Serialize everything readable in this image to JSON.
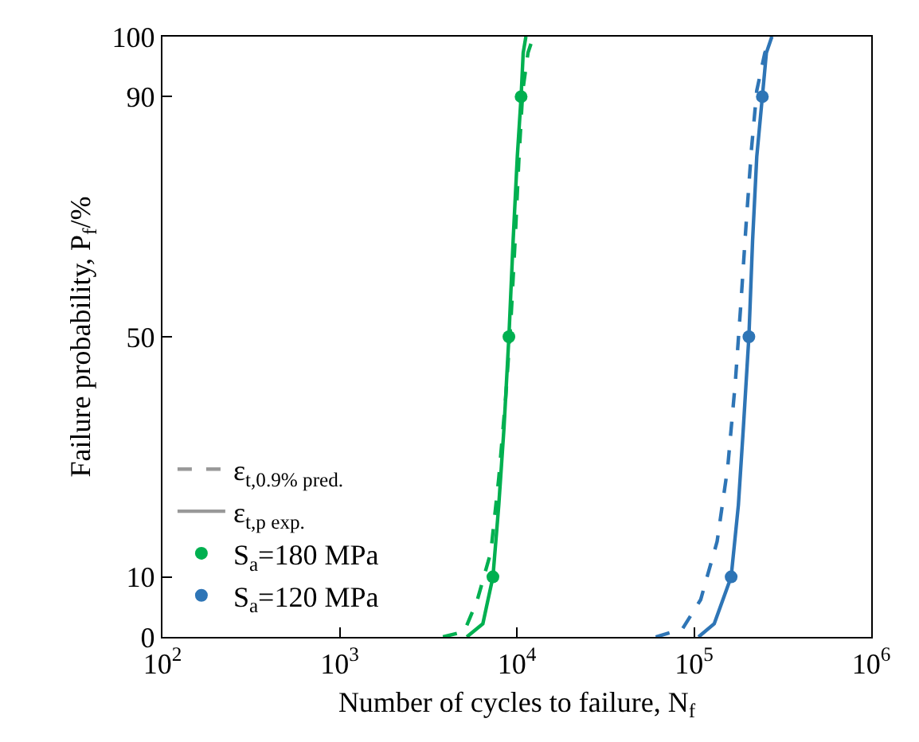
{
  "chart_data": {
    "type": "line",
    "xlabel": "Number of cycles to failure, N$_{f}$",
    "ylabel": "Failure probability, P$_{f}$/%",
    "log": "x",
    "xlim": [
      100,
      1000000
    ],
    "xticks": [
      {
        "value": 100,
        "label": "10$^{2}$"
      },
      {
        "value": 1000,
        "label": "10$^{3}$"
      },
      {
        "value": 10000,
        "label": "10$^{4}$"
      },
      {
        "value": 100000,
        "label": "10$^{5}$"
      },
      {
        "value": 1000000,
        "label": "10$^{6}$"
      }
    ],
    "ylim": [
      0,
      100
    ],
    "yticks": [
      0,
      10,
      50,
      90,
      100
    ],
    "grid": false,
    "legend": "bottom left",
    "series": [
      {
        "name": "ε$_{t,0.9% pred.}$",
        "color": "#999999",
        "line_style": "dashed"
      },
      {
        "name": "ε$_{t,p exp.}$",
        "color": "#999999",
        "line_style": "solid"
      },
      {
        "name": "S$_{a}$=180 MPa",
        "type": "scatter",
        "marker": "circle",
        "color": "#00b050",
        "x": [
          7330,
          9020,
          10570
        ],
        "values": [
          10,
          50,
          90
        ]
      },
      {
        "name": "S$_{a}$=120 MPa",
        "type": "scatter",
        "marker": "circle",
        "color": "#2e75b6",
        "x": [
          162000,
          204000,
          243000
        ],
        "values": [
          10,
          50,
          90
        ]
      },
      {
        "color": "#00b050",
        "line_style": "dashed",
        "x": [
          3830,
          5050,
          5990,
          7130,
          7910,
          8650,
          9270,
          9790,
          10270,
          10800,
          11560,
          12380
        ],
        "values": [
          0,
          0.9,
          6.2,
          14.1,
          26.5,
          39.8,
          53,
          66.3,
          79.6,
          91,
          97.3,
          100
        ]
      },
      {
        "color": "#00b050",
        "line_style": "solid",
        "x": [
          5220,
          6430,
          7330,
          7910,
          8470,
          9020,
          9530,
          10060,
          10570,
          10860,
          11250
        ],
        "values": [
          0,
          2.2,
          10,
          22,
          35,
          50,
          66,
          80,
          90,
          97.3,
          100
        ]
      },
      {
        "color": "#2e75b6",
        "line_style": "dashed",
        "x": [
          60800,
          85900,
          109000,
          135000,
          155000,
          171000,
          184000,
          197000,
          211000,
          226000,
          251000,
          275000
        ],
        "values": [
          0,
          1.3,
          6.2,
          15.9,
          28.3,
          42.4,
          55.7,
          69,
          81.3,
          91,
          97.3,
          100
        ]
      },
      {
        "color": "#2e75b6",
        "line_style": "solid",
        "x": [
          106000,
          130000,
          162000,
          178000,
          190000,
          204000,
          214000,
          226000,
          243000,
          256000,
          275000
        ],
        "values": [
          0,
          2.2,
          10,
          22,
          35,
          50,
          66,
          80,
          90,
          97.3,
          100
        ]
      }
    ]
  }
}
